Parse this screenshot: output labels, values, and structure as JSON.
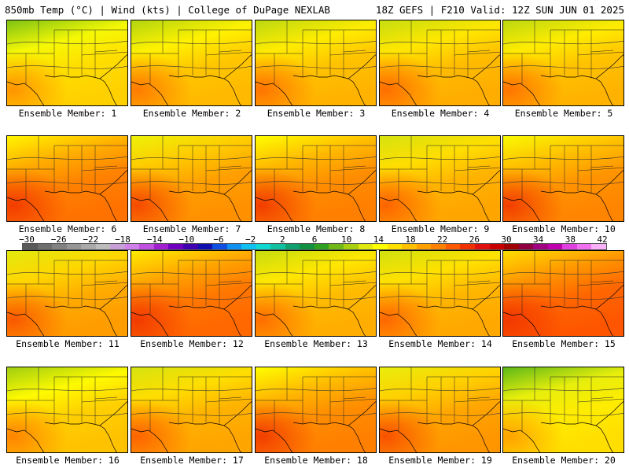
{
  "header": {
    "left": "850mb Temp (°C) | Wind (kts) | College of DuPage NEXLAB",
    "right": "18Z GEFS | F210 Valid: 12Z SUN JUN 01 2025"
  },
  "label_prefix": "Ensemble Member:",
  "members": [
    {
      "label": "Ensemble Member: 1",
      "warmth": 0.4
    },
    {
      "label": "Ensemble Member: 2",
      "warmth": 0.48
    },
    {
      "label": "Ensemble Member: 3",
      "warmth": 0.5
    },
    {
      "label": "Ensemble Member: 4",
      "warmth": 0.52
    },
    {
      "label": "Ensemble Member: 5",
      "warmth": 0.5
    },
    {
      "label": "Ensemble Member: 6",
      "warmth": 0.72
    },
    {
      "label": "Ensemble Member: 7",
      "warmth": 0.62
    },
    {
      "label": "Ensemble Member: 8",
      "warmth": 0.68
    },
    {
      "label": "Ensemble Member: 9",
      "warmth": 0.55
    },
    {
      "label": "Ensemble Member: 10",
      "warmth": 0.66
    },
    {
      "label": "Ensemble Member: 11",
      "warmth": 0.58
    },
    {
      "label": "Ensemble Member: 12",
      "warmth": 0.75
    },
    {
      "label": "Ensemble Member: 13",
      "warmth": 0.52
    },
    {
      "label": "Ensemble Member: 14",
      "warmth": 0.54
    },
    {
      "label": "Ensemble Member: 15",
      "warmth": 0.8
    },
    {
      "label": "Ensemble Member: 16",
      "warmth": 0.45
    },
    {
      "label": "Ensemble Member: 17",
      "warmth": 0.55
    },
    {
      "label": "Ensemble Member: 18",
      "warmth": 0.68
    },
    {
      "label": "Ensemble Member: 19",
      "warmth": 0.6
    },
    {
      "label": "Ensemble Member: 20",
      "warmth": 0.35
    }
  ],
  "colorbar": {
    "tick_labels": [
      "-30",
      "-26",
      "-22",
      "-18",
      "-14",
      "-10",
      "-6",
      "-2",
      "2",
      "6",
      "10",
      "14",
      "18",
      "22",
      "26",
      "30",
      "34",
      "38",
      "42"
    ],
    "colors": [
      "#5a5a5a",
      "#6e6e6e",
      "#828282",
      "#969696",
      "#aaaaaa",
      "#bcbcbc",
      "#c8a0d8",
      "#d080e8",
      "#c050e0",
      "#a020d0",
      "#7000c0",
      "#4000b0",
      "#1010b0",
      "#1050e0",
      "#1090f0",
      "#10c0f0",
      "#10d8d0",
      "#10c0a0",
      "#10a070",
      "#109040",
      "#30a020",
      "#70b818",
      "#a8d010",
      "#e0e810",
      "#ffff00",
      "#ffe000",
      "#ffc000",
      "#ffa000",
      "#ff8000",
      "#ff5a00",
      "#f03000",
      "#e01010",
      "#c80000",
      "#a00000",
      "#900040",
      "#a00080",
      "#c000b0",
      "#e040e0",
      "#f070f0",
      "#f8b0f8"
    ]
  }
}
